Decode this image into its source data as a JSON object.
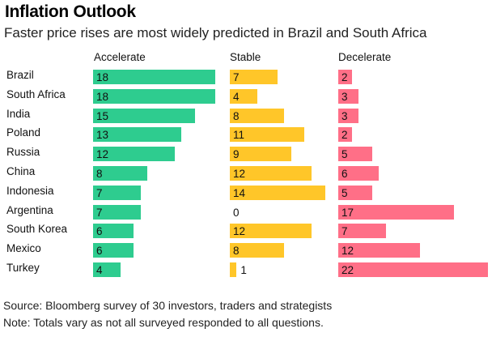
{
  "header": {
    "title": "Inflation Outlook",
    "subtitle": "Faster price rises are most widely predicted in Brazil and South Africa"
  },
  "chart_data": {
    "type": "bar",
    "orientation": "horizontal",
    "layout": "small-multiples",
    "title": "Inflation Outlook",
    "subtitle": "Faster price rises are most widely predicted in Brazil and South Africa",
    "categories": [
      "Brazil",
      "South Africa",
      "India",
      "Poland",
      "Russia",
      "China",
      "Indonesia",
      "Argentina",
      "South Korea",
      "Mexico",
      "Turkey"
    ],
    "series": [
      {
        "name": "Accelerate",
        "color": "#2ecc8f",
        "values": [
          18,
          18,
          15,
          13,
          12,
          8,
          7,
          7,
          6,
          6,
          4
        ]
      },
      {
        "name": "Stable",
        "color": "#ffc629",
        "values": [
          7,
          4,
          8,
          11,
          9,
          12,
          14,
          0,
          12,
          8,
          1
        ]
      },
      {
        "name": "Decelerate",
        "color": "#ff6f87",
        "values": [
          2,
          3,
          3,
          2,
          5,
          6,
          5,
          17,
          7,
          12,
          22
        ]
      }
    ],
    "data_labels": true,
    "xlabel": "",
    "ylabel": "",
    "grid": false,
    "legend": "none"
  },
  "footer": {
    "source": "Source: Bloomberg survey of 30 investors, traders and strategists",
    "note": "Note: Totals vary as not all surveyed responded to all questions."
  }
}
